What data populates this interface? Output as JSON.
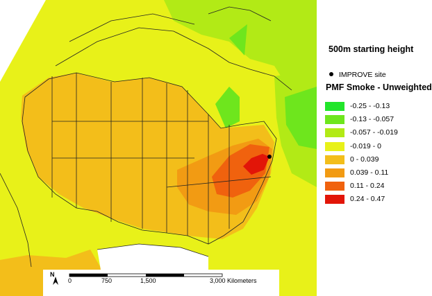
{
  "legend": {
    "title": "500m starting height",
    "site_label": "IMPROVE site",
    "subtitle": "PMF Smoke - Unweighted",
    "classes": [
      {
        "label": "-0.25 - -0.13",
        "color": "#21e52a"
      },
      {
        "label": "-0.13 - -0.057",
        "color": "#6ee61d"
      },
      {
        "label": "-0.057 - -0.019",
        "color": "#b2ea16"
      },
      {
        "label": "-0.019 - 0",
        "color": "#e8f119"
      },
      {
        "label": "0 - 0.039",
        "color": "#f3be1a"
      },
      {
        "label": "0.039 - 0.11",
        "color": "#f29b13"
      },
      {
        "label": "0.11 - 0.24",
        "color": "#f0620e"
      },
      {
        "label": "0.24 - 0.47",
        "color": "#e21508"
      }
    ]
  },
  "scalebar": {
    "north": "N",
    "ticks": [
      "0",
      "750",
      "1,500",
      "3,000 Kilometers"
    ]
  },
  "map": {
    "site": "IMPROVE site",
    "colors": {
      "green_dark": "#21e52a",
      "green": "#6ee61d",
      "lime": "#b2ea16",
      "yellow": "#e8f119",
      "gold": "#f3be1a",
      "orange_light": "#f29b13",
      "orange": "#f0620e",
      "red": "#e21508",
      "boundary": "#222222"
    }
  }
}
